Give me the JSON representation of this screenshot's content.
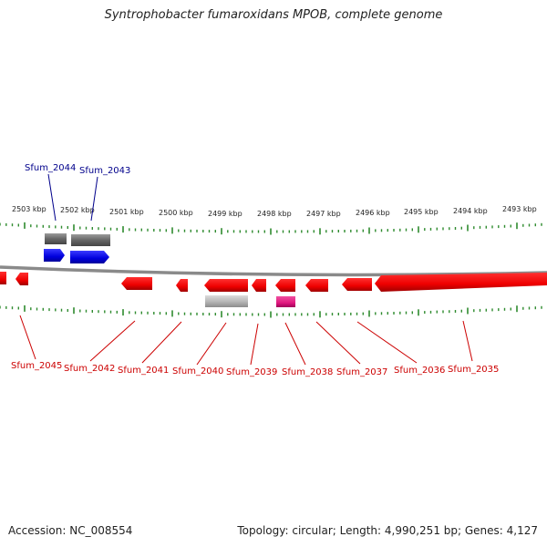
{
  "title": "Syntrophobacter fumaroxidans MPOB, complete genome",
  "footer": {
    "accession": "Accession: NC_008554",
    "summary": "Topology: circular; Length: 4,990,251 bp; Genes: 4,127"
  },
  "colors": {
    "forward_gene": "#0000dd",
    "reverse_gene": "#ee0000",
    "forward_label": "#00008b",
    "reverse_label": "#cc0000",
    "gray_feature": "#777777",
    "light_gray_feature": "#bbbbbb",
    "pink_feature": "#e0187f",
    "tick": "#2e8b2e",
    "backbone": "#888888"
  },
  "scale_labels": [
    "2503 kbp",
    "2502 kbp",
    "2501 kbp",
    "2500 kbp",
    "2499 kbp",
    "2498 kbp",
    "2497 kbp",
    "2496 kbp",
    "2495 kbp",
    "2494 kbp",
    "2493 kbp"
  ],
  "forward_labels": [
    "Sfum_2044",
    "Sfum_2043"
  ],
  "reverse_labels": [
    "Sfum_2045",
    "Sfum_2042",
    "Sfum_2041",
    "Sfum_2040",
    "Sfum_2039",
    "Sfum_2038",
    "Sfum_2037",
    "Sfum_2036",
    "Sfum_2035"
  ]
}
